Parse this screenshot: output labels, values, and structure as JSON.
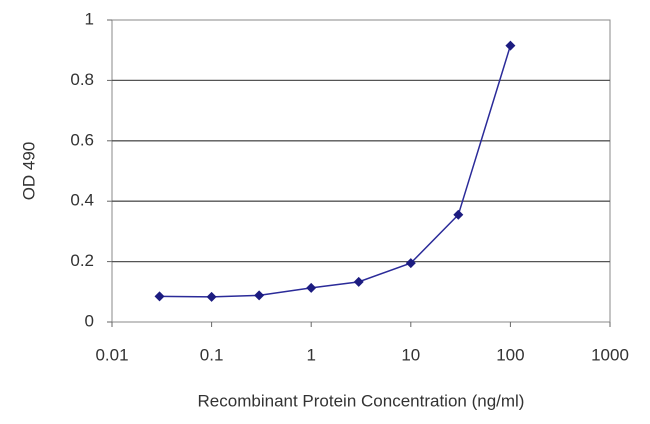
{
  "chart_data": {
    "type": "line",
    "xlabel": "Recombinant Protein Concentration (ng/ml)",
    "ylabel": "OD 490",
    "x": [
      0.03,
      0.1,
      0.3,
      1,
      3,
      10,
      30,
      100
    ],
    "values": [
      0.085,
      0.083,
      0.088,
      0.113,
      0.133,
      0.195,
      0.355,
      0.915
    ],
    "color": "#2b2b99",
    "xscale": "log",
    "xlim": [
      0.01,
      1000
    ],
    "xticks": [
      0.01,
      0.1,
      1,
      10,
      100,
      1000
    ],
    "ylim": [
      0,
      1
    ],
    "yticks": [
      0,
      0.2,
      0.4,
      0.6,
      0.8,
      1
    ],
    "grid": true
  }
}
